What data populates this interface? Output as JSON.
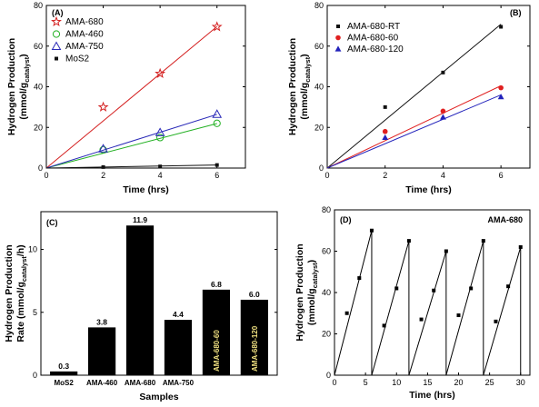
{
  "chart_data": [
    {
      "id": "A",
      "panel_label": "(A)",
      "type": "scatter",
      "xlabel": "Time (hrs)",
      "ylabel": "Hydrogen Production",
      "ylabel_unit": "(mmol/g",
      "ylabel_sub": "catalyst",
      "ylabel_close": ")",
      "xlim": [
        0,
        7
      ],
      "ylim": [
        0,
        80
      ],
      "xticks": [
        "0",
        "2",
        "4",
        "6"
      ],
      "yticks": [
        "0",
        "20",
        "40",
        "60",
        "80"
      ],
      "legend_position": "top-left",
      "series": [
        {
          "name": "AMA-680",
          "marker": "star",
          "color": "#d42020",
          "x": [
            2,
            4,
            6
          ],
          "y": [
            30,
            46.5,
            69.5
          ],
          "fit": [
            0,
            11.6
          ]
        },
        {
          "name": "AMA-460",
          "marker": "circle",
          "color": "#22b022",
          "x": [
            2,
            4,
            6
          ],
          "y": [
            9,
            15,
            22
          ],
          "fit": [
            0,
            3.65
          ]
        },
        {
          "name": "AMA-750",
          "marker": "triangle",
          "color": "#2a2ab8",
          "x": [
            2,
            4,
            6
          ],
          "y": [
            9.5,
            17.5,
            26.5
          ],
          "fit": [
            0,
            4.4
          ]
        },
        {
          "name": "MoS2",
          "marker": "square",
          "color": "#111111",
          "x": [
            2,
            4,
            6
          ],
          "y": [
            0.5,
            0.8,
            1.5
          ],
          "fit": [
            0,
            0.25
          ]
        }
      ]
    },
    {
      "id": "B",
      "panel_label": "(B)",
      "type": "scatter",
      "xlabel": "Time (hrs)",
      "ylabel": "Hydrogen Production",
      "ylabel_unit": "(mmol/g",
      "ylabel_sub": "catalyst",
      "ylabel_close": ")",
      "xlim": [
        0,
        7
      ],
      "ylim": [
        0,
        80
      ],
      "xticks": [
        "0",
        "2",
        "4",
        "6"
      ],
      "yticks": [
        "0",
        "20",
        "40",
        "60",
        "80"
      ],
      "legend_position": "top-left",
      "series": [
        {
          "name": "AMA-680-RT",
          "marker": "square",
          "color": "#111111",
          "x": [
            2,
            4,
            6
          ],
          "y": [
            30,
            47,
            69.5
          ],
          "fit": [
            0,
            11.8
          ]
        },
        {
          "name": "AMA-680-60",
          "marker": "circle",
          "color": "#e02020",
          "x": [
            2,
            4,
            6
          ],
          "y": [
            18,
            28,
            39.5
          ],
          "fit": [
            0,
            6.75
          ]
        },
        {
          "name": "AMA-680-120",
          "marker": "triangle",
          "color": "#2222bb",
          "x": [
            2,
            4,
            6
          ],
          "y": [
            15,
            25,
            35
          ],
          "fit": [
            0,
            6.0
          ]
        }
      ]
    },
    {
      "id": "C",
      "panel_label": "(C)",
      "type": "bar",
      "xlabel": "Samples",
      "ylabel": "Hydrogen Production",
      "ylabel_unit": "Rate (mmol/g",
      "ylabel_sub": "catalyst",
      "ylabel_close": "/h)",
      "ylim": [
        0,
        13
      ],
      "yticks": [
        "0",
        "5",
        "10"
      ],
      "categories": [
        "MoS2",
        "AMA-460",
        "AMA-680",
        "AMA-750",
        "AMA-680-60",
        "AMA-680-120"
      ],
      "values": [
        0.3,
        3.8,
        11.9,
        4.4,
        6.8,
        6.0
      ],
      "value_labels": [
        "0.3",
        "3.8",
        "11.9",
        "4.4",
        "6.8",
        "6.0"
      ],
      "category_inside_bar": [
        false,
        false,
        false,
        false,
        true,
        true
      ],
      "bar_color": "#000000"
    },
    {
      "id": "D",
      "panel_label": "(D)",
      "annotation": "AMA-680",
      "type": "line",
      "xlabel": "Time (hrs)",
      "ylabel": "Hydrogen Production",
      "ylabel_unit": "(mmol/g",
      "ylabel_sub": "catalyst",
      "ylabel_close": ")",
      "xlim": [
        0,
        31.5
      ],
      "ylim": [
        0,
        80
      ],
      "xticks": [
        "0",
        "5",
        "10",
        "15",
        "20",
        "25",
        "30"
      ],
      "yticks": [
        "0",
        "20",
        "40",
        "60",
        "80"
      ],
      "cycles": [
        {
          "x": [
            2,
            4,
            6
          ],
          "y": [
            30,
            47,
            70
          ]
        },
        {
          "x": [
            8,
            10,
            12
          ],
          "y": [
            24,
            42,
            65
          ]
        },
        {
          "x": [
            14,
            16,
            18
          ],
          "y": [
            27,
            41,
            60
          ]
        },
        {
          "x": [
            20,
            22,
            24
          ],
          "y": [
            29,
            42,
            65
          ]
        },
        {
          "x": [
            26,
            28,
            30
          ],
          "y": [
            26,
            43,
            62
          ]
        }
      ]
    }
  ]
}
